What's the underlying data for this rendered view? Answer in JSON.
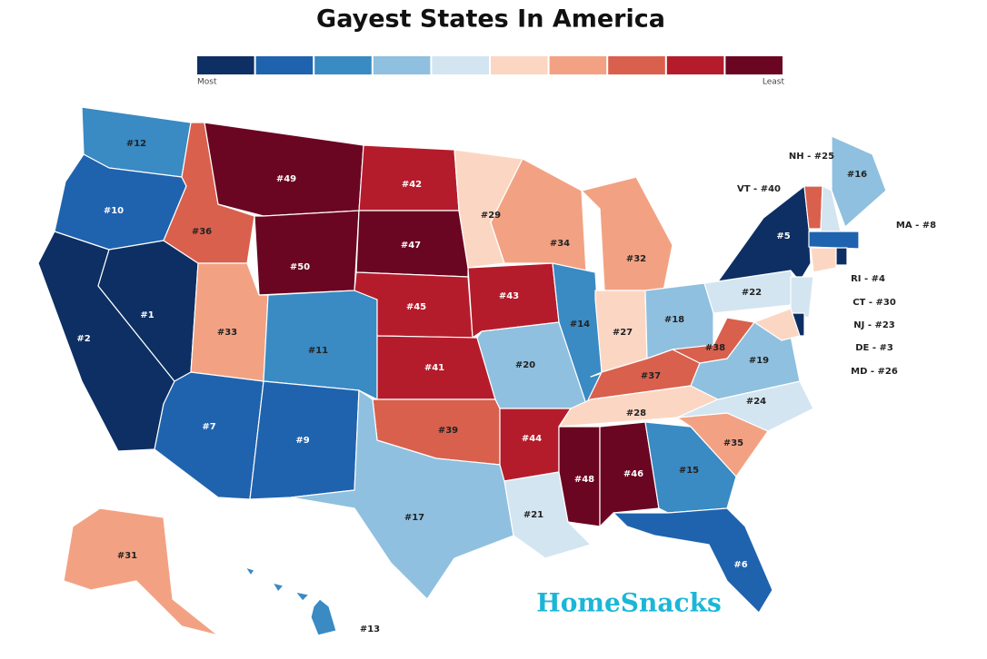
{
  "title": "Gayest States In America",
  "legend": {
    "min_label": "Most",
    "max_label": "Least",
    "colors": [
      "#0d2f63",
      "#1f63ae",
      "#3a8ac3",
      "#8fc0df",
      "#d3e5f0",
      "#fbd7c3",
      "#f2a283",
      "#d9604d",
      "#b51c2b",
      "#6a0522"
    ]
  },
  "brand": "HomeSnacks",
  "states": [
    {
      "label": "#12",
      "color": "#3a8ac3"
    },
    {
      "label": "#10",
      "color": "#1f63ae"
    },
    {
      "label": "#2",
      "color": "#0d2f63"
    },
    {
      "label": "#1",
      "color": "#0d2f63"
    },
    {
      "label": "#36",
      "color": "#d9604d"
    },
    {
      "label": "#49",
      "color": "#6a0522"
    },
    {
      "label": "#50",
      "color": "#6a0522"
    },
    {
      "label": "#33",
      "color": "#f2a283"
    },
    {
      "label": "#11",
      "color": "#3a8ac3"
    },
    {
      "label": "#7",
      "color": "#1f63ae"
    },
    {
      "label": "#9",
      "color": "#1f63ae"
    },
    {
      "label": "#42",
      "color": "#b51c2b"
    },
    {
      "label": "#47",
      "color": "#6a0522"
    },
    {
      "label": "#45",
      "color": "#b51c2b"
    },
    {
      "label": "#41",
      "color": "#b51c2b"
    },
    {
      "label": "#39",
      "color": "#d9604d"
    },
    {
      "label": "#17",
      "color": "#8fc0df"
    },
    {
      "label": "#29",
      "color": "#fbd7c3"
    },
    {
      "label": "#43",
      "color": "#b51c2b"
    },
    {
      "label": "#20",
      "color": "#8fc0df"
    },
    {
      "label": "#44",
      "color": "#b51c2b"
    },
    {
      "label": "#21",
      "color": "#d3e5f0"
    },
    {
      "label": "#34",
      "color": "#f2a283"
    },
    {
      "label": "#14",
      "color": "#3a8ac3"
    },
    {
      "label": "#32",
      "color": "#f2a283"
    },
    {
      "label": "#27",
      "color": "#fbd7c3"
    },
    {
      "label": "#18",
      "color": "#8fc0df"
    },
    {
      "label": "#37",
      "color": "#d9604d"
    },
    {
      "label": "#28",
      "color": "#fbd7c3"
    },
    {
      "label": "#48",
      "color": "#6a0522"
    },
    {
      "label": "#46",
      "color": "#6a0522"
    },
    {
      "label": "#15",
      "color": "#3a8ac3"
    },
    {
      "label": "#6",
      "color": "#1f63ae"
    },
    {
      "label": "#35",
      "color": "#f2a283"
    },
    {
      "label": "#24",
      "color": "#d3e5f0"
    },
    {
      "label": "#19",
      "color": "#8fc0df"
    },
    {
      "label": "#38",
      "color": "#d9604d"
    },
    {
      "label": "#22",
      "color": "#d3e5f0"
    },
    {
      "label": "#5",
      "color": "#0d2f63"
    },
    {
      "label": "#16",
      "color": "#8fc0df"
    },
    {
      "label": "VT - #40",
      "color": "#d9604d"
    },
    {
      "label": "NH - #25",
      "color": "#d3e5f0"
    },
    {
      "label": "MA - #8",
      "color": "#1f63ae"
    },
    {
      "label": "CT - #30",
      "color": "#fbd7c3"
    },
    {
      "label": "RI - #4",
      "color": "#0d2f63"
    },
    {
      "label": "NJ - #23",
      "color": "#d3e5f0"
    },
    {
      "label": "DE - #3",
      "color": "#0d2f63"
    },
    {
      "label": "MD - #26",
      "color": "#fbd7c3"
    },
    {
      "label": "#31",
      "color": "#f2a283"
    },
    {
      "label": "#13",
      "color": "#3a8ac3"
    }
  ]
}
